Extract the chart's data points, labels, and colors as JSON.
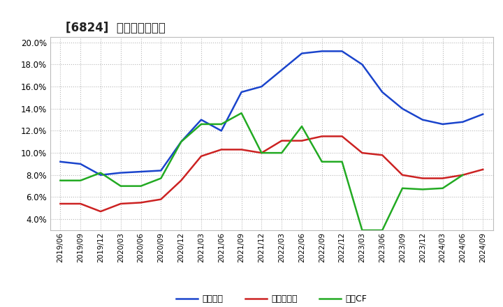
{
  "title": "[6824]  マージンの推移",
  "x_labels": [
    "2019/06",
    "2019/09",
    "2019/12",
    "2020/03",
    "2020/06",
    "2020/09",
    "2020/12",
    "2021/03",
    "2021/06",
    "2021/09",
    "2021/12",
    "2022/03",
    "2022/06",
    "2022/09",
    "2022/12",
    "2023/03",
    "2023/06",
    "2023/09",
    "2023/12",
    "2024/03",
    "2024/06",
    "2024/09"
  ],
  "keijo_rieki": [
    0.092,
    0.09,
    0.08,
    0.082,
    0.083,
    0.084,
    0.11,
    0.13,
    0.12,
    0.155,
    0.16,
    0.175,
    0.19,
    0.192,
    0.192,
    0.18,
    0.155,
    0.14,
    0.13,
    0.126,
    0.128,
    0.135
  ],
  "toki_junrieki": [
    0.054,
    0.054,
    0.047,
    0.054,
    0.055,
    0.058,
    0.075,
    0.097,
    0.103,
    0.103,
    0.1,
    0.111,
    0.111,
    0.115,
    0.115,
    0.1,
    0.098,
    0.08,
    0.077,
    0.077,
    0.08,
    0.085
  ],
  "eigyo_cf": [
    0.075,
    0.075,
    0.082,
    0.07,
    0.07,
    0.077,
    0.11,
    0.126,
    0.126,
    0.136,
    0.1,
    0.1,
    0.124,
    0.092,
    0.092,
    0.03,
    0.03,
    0.068,
    0.067,
    0.068,
    0.08,
    null
  ],
  "line_colors": {
    "keijo_rieki": "#1a44cc",
    "toki_junrieki": "#cc2222",
    "eigyo_cf": "#22aa22"
  },
  "legend_labels": {
    "keijo_rieki": "経常利益",
    "toki_junrieki": "当期純利益",
    "eigyo_cf": "営業CF"
  },
  "ylim": [
    0.03,
    0.205
  ],
  "yticks": [
    0.04,
    0.06,
    0.08,
    0.1,
    0.12,
    0.14,
    0.16,
    0.18,
    0.2
  ],
  "background_color": "#ffffff",
  "grid_color": "#999999",
  "title_fontsize": 12
}
